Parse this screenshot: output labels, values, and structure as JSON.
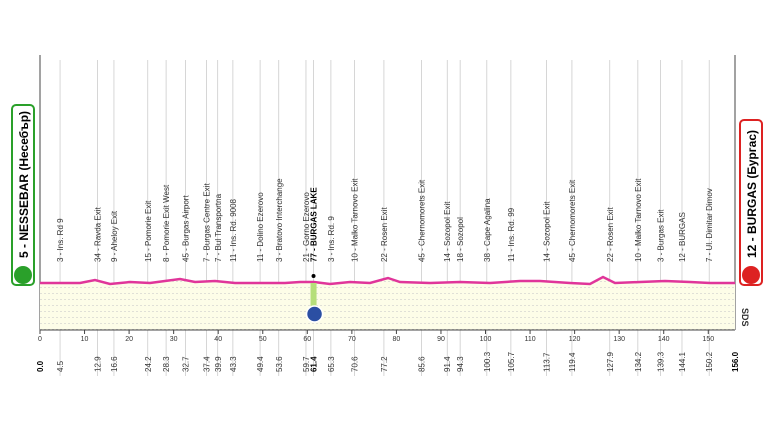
{
  "chart_data": {
    "type": "profile",
    "start": "5 - NESSEBAR (Несебър)",
    "finish": "12 - BURGAS (Бургас)",
    "brand": "SDS",
    "xlim": [
      0,
      156
    ],
    "xticks": [
      0,
      10,
      20,
      30,
      40,
      50,
      60,
      70,
      80,
      90,
      100,
      110,
      120,
      130,
      140,
      150
    ],
    "start_km": {
      "value": 0,
      "label": "0.0"
    },
    "finish_km": {
      "value": 156,
      "label": "156.0"
    },
    "waypoints": [
      {
        "km": 4.5,
        "label": "3 - Ins. Rd 9"
      },
      {
        "km": 12.9,
        "label": "34 - Ravda Exit"
      },
      {
        "km": 16.6,
        "label": "9 - Aheloy Exit"
      },
      {
        "km": 24.2,
        "label": "15 - Pomorie Exit"
      },
      {
        "km": 28.3,
        "label": "8 - Pomorie Exit West"
      },
      {
        "km": 32.7,
        "label": "45 - Burgas Airport"
      },
      {
        "km": 37.4,
        "label": "7 - Burgas Centre Exit"
      },
      {
        "km": 39.9,
        "label": "7 - Bul Transportna"
      },
      {
        "km": 43.3,
        "label": "11 - Ins. Rd. 9008"
      },
      {
        "km": 49.4,
        "label": "11 - Dolino Ezerovo"
      },
      {
        "km": 53.6,
        "label": "3 - Bratovo Interchange"
      },
      {
        "km": 59.7,
        "label": "21 - Gorno Ezerovo"
      },
      {
        "km": 61.4,
        "label": "77 - BURGAS LAKE"
      },
      {
        "km": 65.3,
        "label": "3 - Ins. Rd. 9"
      },
      {
        "km": 70.6,
        "label": "10 - Malko Tarnovo Exit"
      },
      {
        "km": 77.2,
        "label": "22 - Rosen Exit"
      },
      {
        "km": 85.6,
        "label": "45 - Chernomorets Exit"
      },
      {
        "km": 91.4,
        "label": "14 - Sozopol Exit"
      },
      {
        "km": 94.3,
        "label": "18 - Sozopol"
      },
      {
        "km": 100.3,
        "label": "38 - Cape Agalina"
      },
      {
        "km": 105.7,
        "label": "11 - Ins. Rd. 99"
      },
      {
        "km": 113.7,
        "label": "14 - Sozopol Exit"
      },
      {
        "km": 119.4,
        "label": "45 - Chernomorets Exit"
      },
      {
        "km": 127.9,
        "label": "22 - Rosen Exit"
      },
      {
        "km": 134.2,
        "label": "10 - Malko Tarnovo Exit"
      },
      {
        "km": 139.3,
        "label": "3 - Burgas Exit"
      },
      {
        "km": 144.1,
        "label": "12 - BURGAS"
      },
      {
        "km": 150.2,
        "label": "7 - Ul. Dimitar Dimov"
      }
    ],
    "highlight_km": 61.4,
    "line_color": "#e0359a"
  }
}
